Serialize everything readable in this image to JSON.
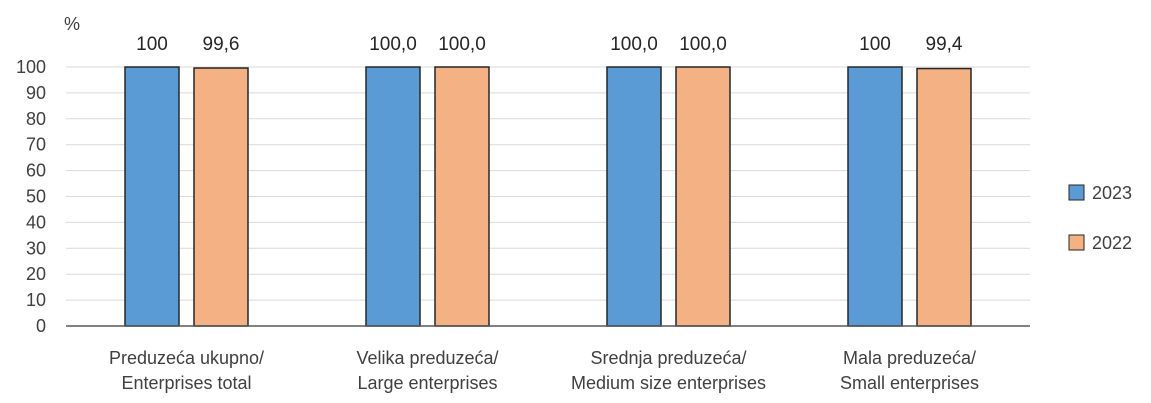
{
  "chart_data": {
    "type": "bar",
    "unit": "%",
    "ylim": [
      0,
      100
    ],
    "yticks": [
      0,
      10,
      20,
      30,
      40,
      50,
      60,
      70,
      80,
      90,
      100
    ],
    "grid": true,
    "legend_position": "right",
    "categories": [
      [
        "Preduzeća ukupno/",
        "Enterprises total"
      ],
      [
        "Velika preduzeća/",
        "Large enterprises"
      ],
      [
        "Srednja preduzeća/",
        "Medium size enterprises"
      ],
      [
        "Mala preduzeća/",
        "Small enterprises"
      ]
    ],
    "series": [
      {
        "name": "2023",
        "color": "#5B9BD5",
        "values": [
          100,
          100,
          100,
          100
        ],
        "labels": [
          "100",
          "100,0",
          "100,0",
          "100"
        ]
      },
      {
        "name": "2022",
        "color": "#F4B183",
        "values": [
          99.6,
          100,
          100,
          99.4
        ],
        "labels": [
          "99,6",
          "100,0",
          "100,0",
          "99,4"
        ]
      }
    ]
  }
}
